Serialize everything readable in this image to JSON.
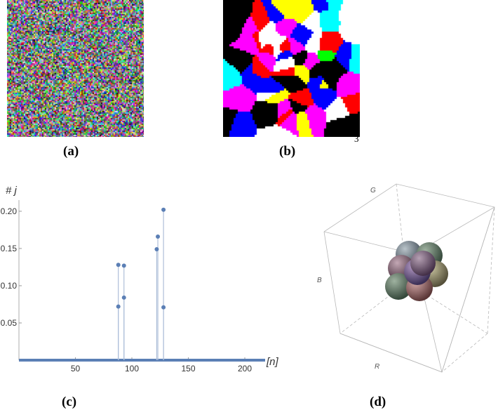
{
  "captions": {
    "a": "(a)",
    "b": "(b)",
    "c": "(c)",
    "d": "(d)"
  },
  "panel_b_number": "3",
  "panel_b_colors": [
    "#ff00ff",
    "#ff0000",
    "#00ff00",
    "#0000ff",
    "#00ffff",
    "#ffff00",
    "#000000",
    "#ffffff"
  ],
  "cube_labels": {
    "g": "G",
    "b": "B",
    "r": "R"
  },
  "chart_data": {
    "type": "scatter",
    "title": "",
    "ylabel": "#  j",
    "xlabel": "[n]",
    "xlim": [
      0,
      218
    ],
    "ylim": [
      0,
      0.215
    ],
    "xticks": [
      50,
      100,
      150,
      200
    ],
    "yticks": [
      0.05,
      0.1,
      0.15,
      0.2
    ],
    "ytick_labels": [
      "0.05",
      "0.10",
      "0.15",
      "0.20"
    ],
    "points": [
      {
        "x": 88,
        "y": 0.128
      },
      {
        "x": 88,
        "y": 0.072
      },
      {
        "x": 93,
        "y": 0.127
      },
      {
        "x": 93,
        "y": 0.084
      },
      {
        "x": 122,
        "y": 0.149
      },
      {
        "x": 123,
        "y": 0.166
      },
      {
        "x": 128,
        "y": 0.202
      },
      {
        "x": 128,
        "y": 0.071
      }
    ],
    "baseline_range": [
      0,
      218
    ],
    "color": "#5b7fb5"
  }
}
